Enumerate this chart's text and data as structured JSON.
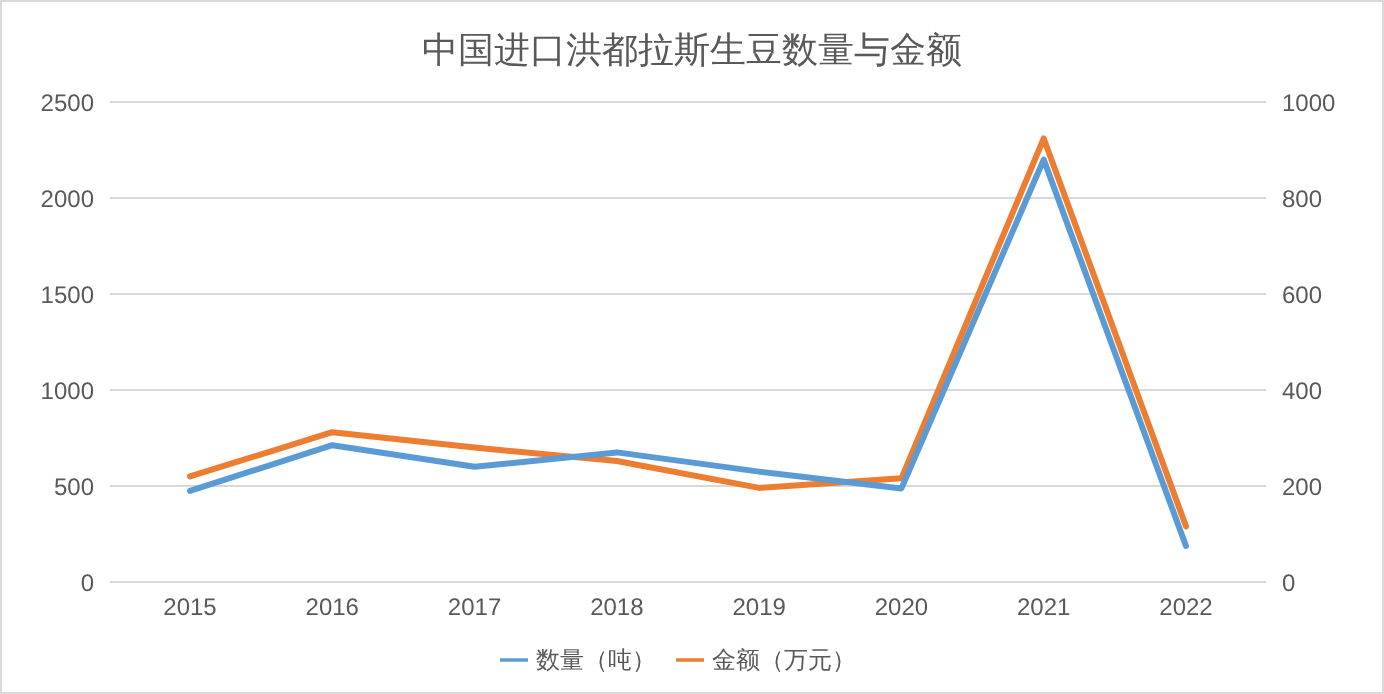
{
  "chart_data": {
    "type": "line",
    "title": "中国进口洪都拉斯生豆数量与金额",
    "categories": [
      "2015",
      "2016",
      "2017",
      "2018",
      "2019",
      "2020",
      "2021",
      "2022"
    ],
    "series": [
      {
        "name": "金额（万元）",
        "color": "#ed7d31",
        "values": [
          550,
          780,
          700,
          630,
          490,
          540,
          2310,
          290
        ]
      },
      {
        "name": "数量（吨）",
        "color": "#5b9bd5",
        "axis": "y2",
        "values": [
          190,
          285,
          240,
          270,
          230,
          195,
          880,
          75
        ]
      }
    ],
    "ylim": [
      0,
      2500
    ],
    "yticks": [
      0,
      500,
      1000,
      1500,
      2000,
      2500
    ],
    "y2lim": [
      0,
      1000
    ],
    "y2ticks": [
      0,
      200,
      400,
      600,
      800,
      1000
    ],
    "grid": "y",
    "legend": "bottom",
    "marker": "none",
    "line_style": "solid"
  }
}
